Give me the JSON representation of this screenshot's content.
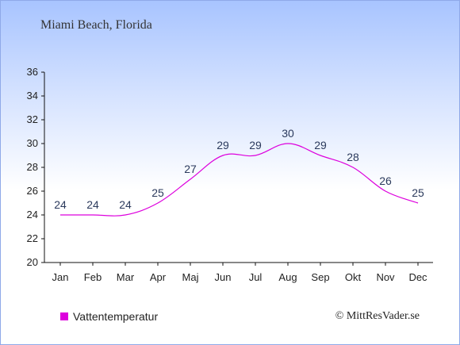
{
  "chart_title": "Miami Beach, Florida",
  "copyright": "© MittResVader.se",
  "chart_data": {
    "type": "line",
    "title": "Miami Beach, Florida",
    "categories": [
      "Jan",
      "Feb",
      "Mar",
      "Apr",
      "Maj",
      "Jun",
      "Jul",
      "Aug",
      "Sep",
      "Okt",
      "Nov",
      "Dec"
    ],
    "series": [
      {
        "name": "Vattentemperatur",
        "values": [
          24,
          24,
          24,
          25,
          27,
          29,
          29,
          30,
          29,
          28,
          26,
          25
        ],
        "color": "#dd00dd"
      }
    ],
    "yticks": [
      20,
      22,
      24,
      26,
      28,
      30,
      32,
      34,
      36
    ],
    "ylim": [
      20,
      36
    ],
    "grid": false,
    "legend_position": "bottom-left"
  }
}
